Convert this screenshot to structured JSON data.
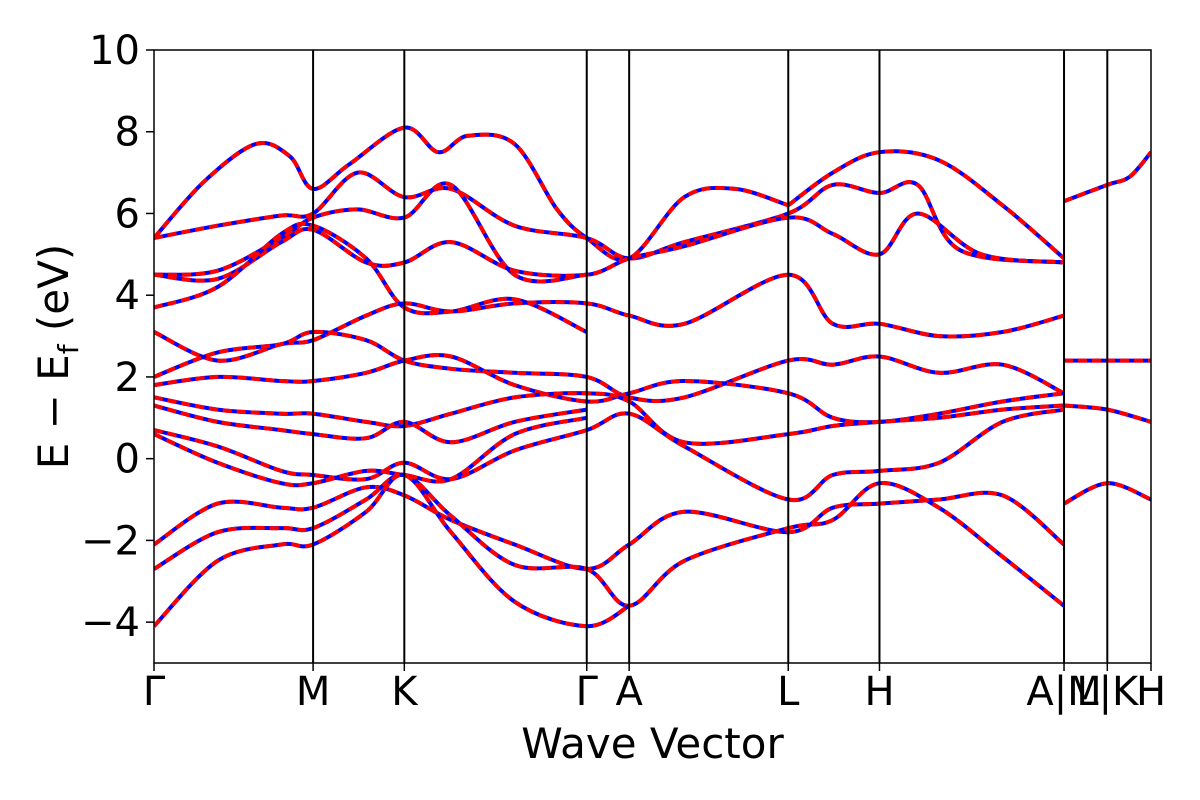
{
  "chart_data": {
    "type": "line",
    "title": "",
    "xlabel": "Wave Vector",
    "ylabel": "E − E_f (eV)",
    "ylabel_parts": {
      "main": "E − E",
      "sub": "f",
      "unit": "(eV)"
    },
    "ylim": [
      -5,
      10
    ],
    "yticks": [
      -4,
      -2,
      0,
      2,
      4,
      6,
      8,
      10
    ],
    "ytick_labels": [
      "−4",
      "−2",
      "0",
      "2",
      "4",
      "6",
      "8",
      "10"
    ],
    "xlim": [
      0,
      23.5
    ],
    "high_symmetry_points": [
      {
        "label": "Γ",
        "x": 0.0
      },
      {
        "label": "M",
        "x": 3.75
      },
      {
        "label": "K",
        "x": 5.9
      },
      {
        "label": "Γ",
        "x": 10.2
      },
      {
        "label": "A",
        "x": 11.2
      },
      {
        "label": "L",
        "x": 14.95
      },
      {
        "label": "H",
        "x": 17.1
      },
      {
        "label": "A|M",
        "x": 21.45
      },
      {
        "label": "L|K",
        "x": 22.47
      },
      {
        "label": "H",
        "x": 23.5
      }
    ],
    "grid": false,
    "legend": null,
    "colors": {
      "band": "#ff0000",
      "dash": "#0000ff",
      "axis": "#000000"
    },
    "series": [
      {
        "x": [
          0,
          1.2,
          2.4,
          3.2,
          3.75,
          4.6,
          5.9,
          6.7,
          7.4,
          8.5,
          9.5,
          10.2,
          11.2,
          12.5,
          13.7,
          14.95
        ],
        "values": [
          5.4,
          6.8,
          7.7,
          7.4,
          6.6,
          7.2,
          8.1,
          7.5,
          7.9,
          7.7,
          6.1,
          5.4,
          4.9,
          6.4,
          6.6,
          6.2
        ]
      },
      {
        "x": [
          14.95,
          16.0,
          17.1,
          18.5,
          20.0,
          21.45
        ],
        "values": [
          6.2,
          7.0,
          7.5,
          7.3,
          6.2,
          4.9
        ]
      },
      {
        "x": [
          21.45,
          22.47,
          23.0,
          23.5
        ],
        "values": [
          6.3,
          6.7,
          6.9,
          7.5
        ]
      },
      {
        "x": [
          0,
          1.5,
          3.0,
          3.75,
          4.8,
          5.9,
          7.0,
          8.5,
          10.2,
          11.2,
          12.5,
          14.95,
          16.0,
          17.1,
          18.0,
          19.0,
          21.45
        ],
        "values": [
          5.4,
          5.7,
          5.95,
          6.0,
          7.0,
          6.4,
          6.6,
          5.7,
          5.4,
          4.9,
          5.3,
          6.0,
          6.7,
          6.5,
          6.7,
          5.1,
          4.8
        ]
      },
      {
        "x": [
          0,
          1.5,
          3.0,
          3.75,
          4.8,
          5.9,
          7.0,
          8.5,
          10.2
        ],
        "values": [
          4.5,
          4.6,
          5.4,
          5.9,
          6.1,
          5.9,
          6.7,
          4.5,
          4.5
        ]
      },
      {
        "x": [
          0,
          1.5,
          3.0,
          3.75,
          5.0,
          5.9,
          7.0,
          8.5,
          10.2,
          11.2,
          12.5,
          14.95,
          16.0,
          17.1,
          18.0,
          19.5,
          21.45
        ],
        "values": [
          4.5,
          4.4,
          5.3,
          5.6,
          4.8,
          4.8,
          5.3,
          4.6,
          4.5,
          4.9,
          5.2,
          5.9,
          5.5,
          5.0,
          6.0,
          5.0,
          4.8
        ]
      },
      {
        "x": [
          0,
          1.5,
          3.0,
          3.75,
          5.0,
          5.9,
          7.0,
          8.5,
          10.2
        ],
        "values": [
          3.7,
          4.2,
          5.5,
          5.7,
          4.9,
          3.7,
          3.6,
          3.9,
          3.1
        ]
      },
      {
        "x": [
          0,
          1.5,
          3.0,
          3.75,
          5.0,
          5.9,
          7.0,
          8.5,
          10.2,
          11.2,
          12.5,
          14.95,
          16.0,
          17.1,
          18.5,
          20.0,
          21.45
        ],
        "values": [
          3.1,
          2.4,
          2.8,
          2.9,
          3.5,
          3.8,
          3.6,
          3.8,
          3.8,
          3.5,
          3.3,
          4.5,
          3.3,
          3.3,
          3.0,
          3.1,
          3.5
        ]
      },
      {
        "x": [
          0,
          1.5,
          3.0,
          3.75,
          5.0,
          5.9,
          7.0,
          8.5,
          10.2,
          11.2,
          12.5,
          14.95,
          16.0,
          17.1,
          18.5,
          20.0,
          21.45
        ],
        "values": [
          2.0,
          2.6,
          2.8,
          3.1,
          2.9,
          2.4,
          2.2,
          2.1,
          2.0,
          1.5,
          1.5,
          2.4,
          2.3,
          2.5,
          2.1,
          2.3,
          1.6
        ]
      },
      {
        "x": [
          0,
          1.5,
          3.0,
          3.75,
          5.0,
          5.9,
          7.0,
          8.5,
          10.2,
          11.2,
          12.5,
          14.95,
          16.0,
          17.1,
          18.5,
          20.0,
          21.45
        ],
        "values": [
          1.8,
          2.0,
          1.9,
          1.9,
          2.1,
          2.4,
          2.5,
          1.8,
          1.4,
          1.6,
          1.9,
          1.6,
          1.0,
          0.9,
          1.1,
          1.4,
          1.6
        ]
      },
      {
        "x": [
          0,
          1.5,
          3.0,
          3.75,
          5.0,
          5.9,
          7.0,
          8.5,
          10.2,
          11.2,
          12.5,
          14.95,
          16.0,
          17.1,
          18.5,
          20.0,
          21.45
        ],
        "values": [
          1.5,
          1.2,
          1.1,
          1.1,
          0.9,
          0.8,
          1.1,
          1.5,
          1.6,
          1.4,
          0.4,
          0.6,
          0.8,
          0.9,
          1.0,
          1.2,
          1.3
        ]
      },
      {
        "x": [
          0,
          1.5,
          3.0,
          3.75,
          5.0,
          5.9,
          7.0,
          8.5,
          10.2
        ],
        "values": [
          1.3,
          0.9,
          0.7,
          0.6,
          0.5,
          0.9,
          0.4,
          0.9,
          1.2
        ]
      },
      {
        "x": [
          0,
          1.5,
          3.0,
          3.75,
          5.0,
          5.9,
          7.0,
          8.5,
          10.2,
          11.2,
          12.5,
          14.95,
          16.0,
          17.1,
          18.5,
          20.0,
          21.45
        ],
        "values": [
          0.7,
          0.3,
          -0.3,
          -0.4,
          -0.5,
          -0.1,
          -0.5,
          0.2,
          0.7,
          1.1,
          0.3,
          -1.0,
          -0.4,
          -0.3,
          -0.1,
          0.9,
          1.2
        ]
      },
      {
        "x": [
          0,
          1.5,
          3.0,
          3.75,
          5.0,
          5.9,
          7.0,
          8.5,
          10.2
        ],
        "values": [
          0.6,
          -0.1,
          -0.6,
          -0.6,
          -0.3,
          -0.4,
          -0.5,
          0.6,
          1.0
        ]
      },
      {
        "x": [
          0,
          1.5,
          3.0,
          3.75,
          5.0,
          5.9,
          7.0,
          8.5,
          10.2,
          11.2,
          12.5,
          14.95,
          16.0,
          17.1,
          18.5,
          20.0,
          21.45
        ],
        "values": [
          -2.1,
          -1.1,
          -1.2,
          -1.2,
          -0.7,
          -0.9,
          -1.5,
          -2.1,
          -2.7,
          -2.1,
          -1.3,
          -1.8,
          -1.2,
          -1.1,
          -1.0,
          -0.9,
          -2.1
        ]
      },
      {
        "x": [
          0,
          1.5,
          3.0,
          3.75,
          5.0,
          5.9,
          7.0,
          8.5,
          10.2,
          11.2,
          12.5,
          14.95,
          16.0,
          17.1,
          18.5,
          20.0,
          21.45
        ],
        "values": [
          -2.7,
          -1.8,
          -1.7,
          -1.7,
          -1.0,
          -0.4,
          -1.4,
          -2.6,
          -2.7,
          -3.6,
          -2.5,
          -1.7,
          -1.5,
          -0.6,
          -1.2,
          -2.4,
          -3.6
        ]
      },
      {
        "x": [
          0,
          1.5,
          3.0,
          3.75,
          5.0,
          5.9,
          7.0,
          8.5,
          10.2,
          11.2
        ],
        "values": [
          -4.1,
          -2.5,
          -2.1,
          -2.1,
          -1.3,
          -0.4,
          -1.8,
          -3.5,
          -4.1,
          -3.6
        ]
      },
      {
        "x": [
          21.45,
          22.47,
          23.5
        ],
        "values": [
          2.4,
          2.4,
          2.4
        ]
      },
      {
        "x": [
          21.45,
          22.47,
          23.5
        ],
        "values": [
          1.3,
          1.2,
          0.9
        ]
      },
      {
        "x": [
          21.45,
          22.47,
          23.5
        ],
        "values": [
          -1.1,
          -0.6,
          -1.0
        ]
      }
    ]
  }
}
